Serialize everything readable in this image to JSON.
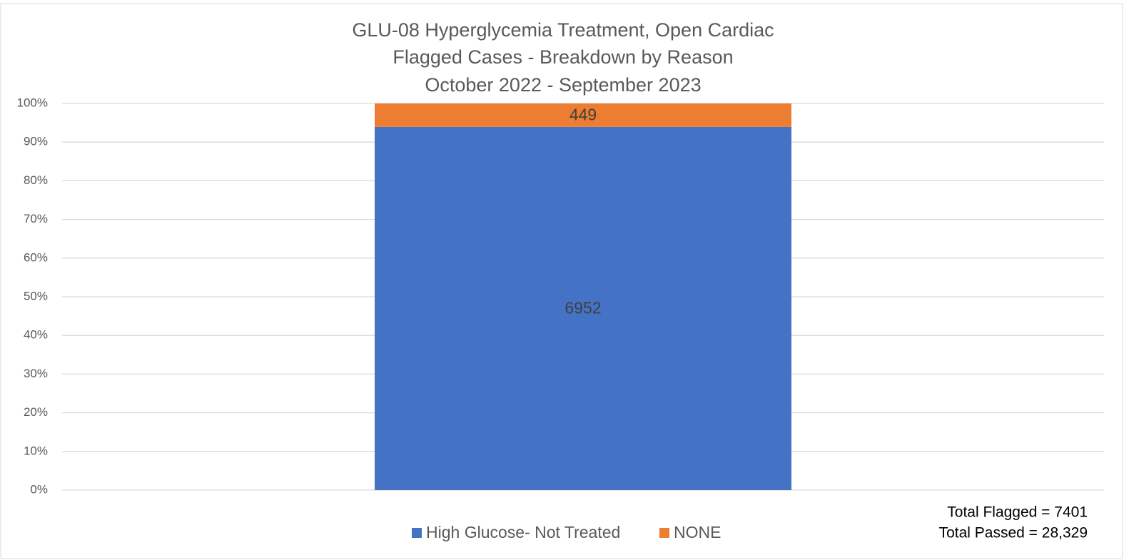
{
  "chart_data": {
    "type": "bar",
    "stacking": "percent",
    "title": [
      "GLU-08 Hyperglycemia Treatment, Open Cardiac",
      "Flagged Cases - Breakdown by Reason",
      "October 2022 - September 2023"
    ],
    "categories": [
      null
    ],
    "series": [
      {
        "name": "High Glucose- Not Treated",
        "color": "#4472c4",
        "values": [
          6952
        ]
      },
      {
        "name": "NONE",
        "color": "#ed7d31",
        "values": [
          449
        ]
      }
    ],
    "ylim": [
      0,
      100
    ],
    "yticks": [
      {
        "value": 0,
        "label": "0%"
      },
      {
        "value": 10,
        "label": "10%"
      },
      {
        "value": 20,
        "label": "20%"
      },
      {
        "value": 30,
        "label": "30%"
      },
      {
        "value": 40,
        "label": "40%"
      },
      {
        "value": 50,
        "label": "50%"
      },
      {
        "value": 60,
        "label": "60%"
      },
      {
        "value": 70,
        "label": "70%"
      },
      {
        "value": 80,
        "label": "80%"
      },
      {
        "value": 90,
        "label": "90%"
      },
      {
        "value": 100,
        "label": "100%"
      }
    ],
    "grid": true,
    "legend": "bottom",
    "annotations": [
      "Total Flagged = 7401",
      "Total Passed = 28,329"
    ]
  }
}
